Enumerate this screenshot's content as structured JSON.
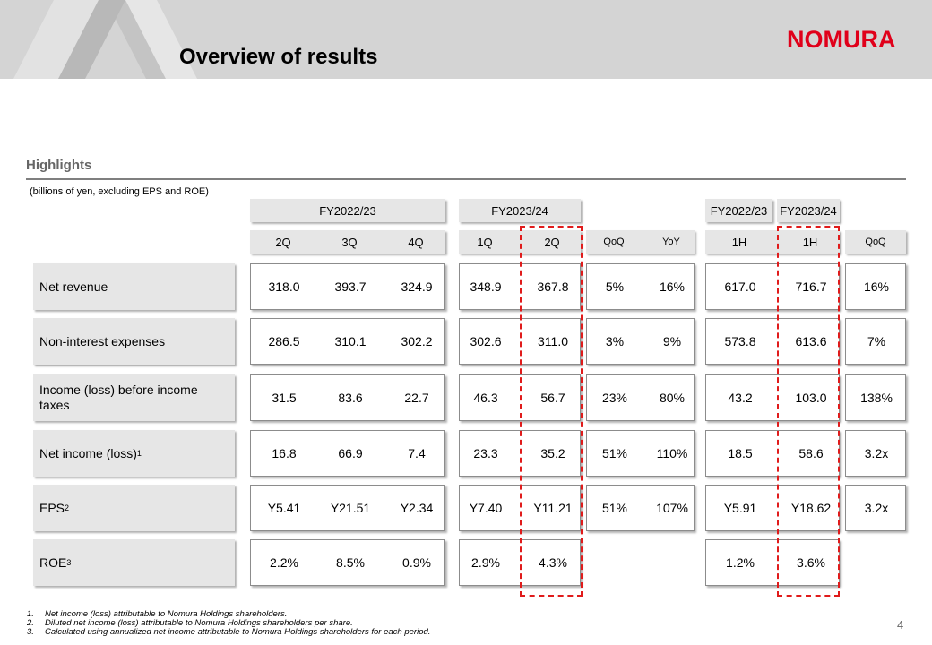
{
  "header": {
    "title": "Overview of results",
    "logo": "NOMURA"
  },
  "section": {
    "title": "Highlights",
    "units": "(billions of yen, excluding EPS and ROE)"
  },
  "groups": {
    "fy2223": "FY2022/23",
    "fy2324": "FY2023/24",
    "h1_fy2223": "FY2022/23",
    "h1_fy2324": "FY2023/24"
  },
  "periods": {
    "q2_22": "2Q",
    "q3_22": "3Q",
    "q4_22": "4Q",
    "q1_23": "1Q",
    "q2_23": "2Q",
    "qoq": "QoQ",
    "yoy": "YoY",
    "h1_22": "1H",
    "h1_23": "1H",
    "h_qoq": "QoQ"
  },
  "rows": [
    {
      "label": "Net revenue",
      "sup": "",
      "q2_22": "318.0",
      "q3_22": "393.7",
      "q4_22": "324.9",
      "q1_23": "348.9",
      "q2_23": "367.8",
      "qoq": "5%",
      "yoy": "16%",
      "h1_22": "617.0",
      "h1_23": "716.7",
      "h_qoq": "16%"
    },
    {
      "label": "Non-interest expenses",
      "sup": "",
      "q2_22": "286.5",
      "q3_22": "310.1",
      "q4_22": "302.2",
      "q1_23": "302.6",
      "q2_23": "311.0",
      "qoq": "3%",
      "yoy": "9%",
      "h1_22": "573.8",
      "h1_23": "613.6",
      "h_qoq": "7%"
    },
    {
      "label": "Income (loss) before income taxes",
      "sup": "",
      "q2_22": "31.5",
      "q3_22": "83.6",
      "q4_22": "22.7",
      "q1_23": "46.3",
      "q2_23": "56.7",
      "qoq": "23%",
      "yoy": "80%",
      "h1_22": "43.2",
      "h1_23": "103.0",
      "h_qoq": "138%"
    },
    {
      "label": "Net income (loss)",
      "sup": "1",
      "q2_22": "16.8",
      "q3_22": "66.9",
      "q4_22": "7.4",
      "q1_23": "23.3",
      "q2_23": "35.2",
      "qoq": "51%",
      "yoy": "110%",
      "h1_22": "18.5",
      "h1_23": "58.6",
      "h_qoq": "3.2x"
    },
    {
      "label": "EPS",
      "sup": "2",
      "q2_22": "Y5.41",
      "q3_22": "Y21.51",
      "q4_22": "Y2.34",
      "q1_23": "Y7.40",
      "q2_23": "Y11.21",
      "qoq": "51%",
      "yoy": "107%",
      "h1_22": "Y5.91",
      "h1_23": "Y18.62",
      "h_qoq": "3.2x"
    },
    {
      "label": "ROE",
      "sup": "3",
      "q2_22": "2.2%",
      "q3_22": "8.5%",
      "q4_22": "0.9%",
      "q1_23": "2.9%",
      "q2_23": "4.3%",
      "qoq": "",
      "yoy": "",
      "h1_22": "1.2%",
      "h1_23": "3.6%",
      "h_qoq": ""
    }
  ],
  "footnotes": [
    {
      "n": "1.",
      "text": "Net income (loss) attributable to Nomura Holdings shareholders."
    },
    {
      "n": "2.",
      "text": "Diluted net income (loss) attributable to Nomura Holdings shareholders per share."
    },
    {
      "n": "3.",
      "text": "Calculated using annualized net income attributable to Nomura Holdings shareholders for each period."
    }
  ],
  "page_number": "4",
  "colors": {
    "accent": "#e0001a",
    "highlight_dash": "#e01b1b",
    "header_bg": "#d4d4d4"
  }
}
